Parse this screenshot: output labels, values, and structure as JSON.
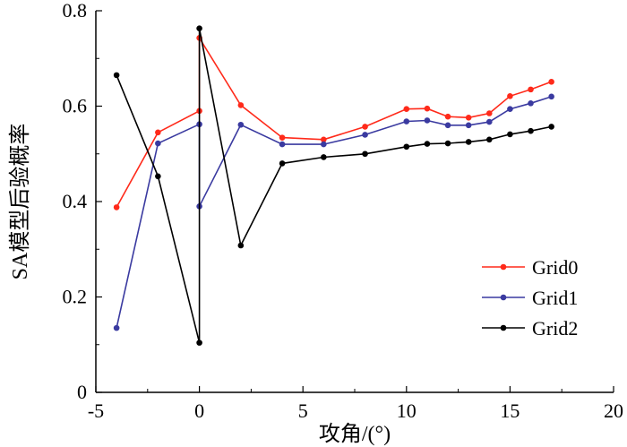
{
  "chart_data": {
    "type": "line",
    "xlabel": "攻角/(°)",
    "ylabel": "SA模型后验概率",
    "xlim": [
      -5,
      20
    ],
    "ylim": [
      0,
      0.8
    ],
    "xticks": [
      -5,
      0,
      5,
      10,
      15,
      20
    ],
    "yticks": [
      0,
      0.2,
      0.4,
      0.6,
      0.8
    ],
    "grid": false,
    "legend_position": "bottom-right",
    "series": [
      {
        "name": "Grid0",
        "color": "#ff2a1a",
        "x": [
          -4,
          -2,
          0,
          0,
          2,
          4,
          6,
          8,
          10,
          11,
          12,
          13,
          14,
          15,
          16,
          17
        ],
        "y": [
          0.388,
          0.545,
          0.59,
          0.743,
          0.602,
          0.534,
          0.53,
          0.557,
          0.594,
          0.595,
          0.578,
          0.576,
          0.585,
          0.621,
          0.635,
          0.651
        ]
      },
      {
        "name": "Grid1",
        "color": "#3a3aa0",
        "x": [
          -4,
          -2,
          0,
          0,
          2,
          4,
          6,
          8,
          10,
          11,
          12,
          13,
          14,
          15,
          16,
          17
        ],
        "y": [
          0.135,
          0.522,
          0.562,
          0.39,
          0.561,
          0.52,
          0.52,
          0.54,
          0.568,
          0.57,
          0.56,
          0.56,
          0.567,
          0.594,
          0.606,
          0.62
        ]
      },
      {
        "name": "Grid2",
        "color": "#000000",
        "x": [
          -4,
          -2,
          0,
          0,
          2,
          4,
          6,
          8,
          10,
          11,
          12,
          13,
          14,
          15,
          16,
          17
        ],
        "y": [
          0.665,
          0.453,
          0.104,
          0.763,
          0.308,
          0.48,
          0.493,
          0.5,
          0.515,
          0.521,
          0.522,
          0.525,
          0.53,
          0.541,
          0.548,
          0.557
        ]
      }
    ]
  }
}
